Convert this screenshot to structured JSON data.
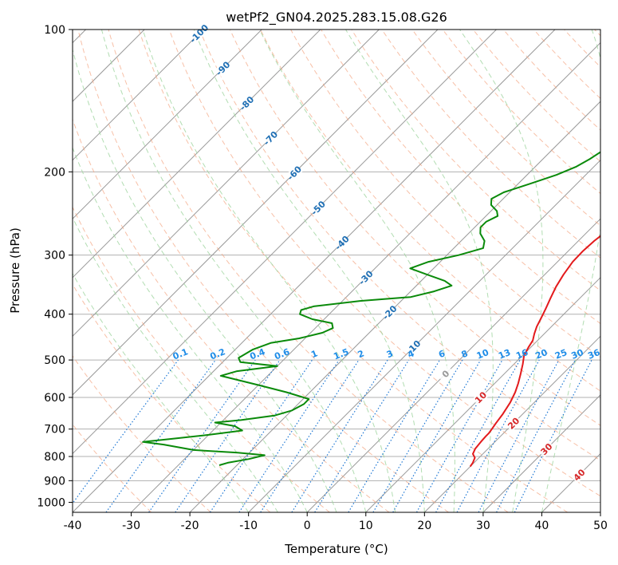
{
  "chart_data": {
    "type": "line",
    "title": "wetPf2_GN04.2025.283.15.08.G26",
    "xlabel": "Temperature (°C)",
    "ylabel": "Pressure (hPa)",
    "xlim": [
      -40,
      50
    ],
    "ylim": [
      1050,
      100
    ],
    "y_scale": "log",
    "grid": true,
    "x_ticks": [
      -40,
      -30,
      -20,
      -10,
      0,
      10,
      20,
      30,
      40,
      50
    ],
    "y_ticks": [
      100,
      200,
      300,
      400,
      500,
      600,
      700,
      800,
      900,
      1000
    ],
    "colors": {
      "temperature": "#e31a1c",
      "dewpoint": "#0a8a0a",
      "isotherm": "#999999",
      "dry_adiabat": "#f4a582",
      "moist_adiabat": "#9fd49f",
      "mixing_ratio": "#1f78d4",
      "label_isotherm": "#1f6fb4",
      "label_mixing": "#1f8de8",
      "label_warm": "#d62728"
    },
    "series": [
      {
        "key": "temperature",
        "points": [
          [
            20.0,
            840
          ],
          [
            19.8,
            825
          ],
          [
            19.3,
            805
          ],
          [
            18.3,
            790
          ],
          [
            17.8,
            770
          ],
          [
            17.6,
            745
          ],
          [
            17.5,
            725
          ],
          [
            17.5,
            715
          ],
          [
            17.3,
            700
          ],
          [
            17.0,
            680
          ],
          [
            16.6,
            650
          ],
          [
            15.9,
            615
          ],
          [
            15.0,
            585
          ],
          [
            14.0,
            560
          ],
          [
            12.8,
            535
          ],
          [
            11.5,
            510
          ],
          [
            10.3,
            490
          ],
          [
            9.6,
            470
          ],
          [
            9.2,
            455
          ],
          [
            8.3,
            440
          ],
          [
            7.5,
            425
          ],
          [
            6.9,
            410
          ],
          [
            6.0,
            390
          ],
          [
            5.0,
            370
          ],
          [
            4.0,
            350
          ],
          [
            3.2,
            330
          ],
          [
            2.6,
            310
          ],
          [
            2.5,
            295
          ],
          [
            2.7,
            280
          ],
          [
            3.2,
            265
          ],
          [
            3.9,
            250
          ],
          [
            4.8,
            237
          ],
          [
            5.5,
            225
          ],
          [
            6.4,
            213
          ],
          [
            7.2,
            202
          ],
          [
            7.7,
            190
          ],
          [
            8.6,
            177
          ],
          [
            9.7,
            165
          ],
          [
            11.2,
            152
          ],
          [
            12.4,
            142
          ],
          [
            12.9,
            134
          ],
          [
            13.4,
            126
          ],
          [
            14.5,
            118
          ],
          [
            16.6,
            110
          ],
          [
            18.4,
            100
          ]
        ]
      },
      {
        "key": "dewpoint",
        "points": [
          [
            -23.0,
            835
          ],
          [
            -22.0,
            825
          ],
          [
            -19.0,
            810
          ],
          [
            -17.0,
            795
          ],
          [
            -22.0,
            785
          ],
          [
            -30.0,
            775
          ],
          [
            -36.0,
            755
          ],
          [
            -40.0,
            745
          ],
          [
            -36.0,
            735
          ],
          [
            -30.0,
            720
          ],
          [
            -25.0,
            705
          ],
          [
            -27.0,
            690
          ],
          [
            -31.0,
            678
          ],
          [
            -27.0,
            670
          ],
          [
            -22.0,
            655
          ],
          [
            -20.0,
            640
          ],
          [
            -19.0,
            620
          ],
          [
            -19.0,
            605
          ],
          [
            -24.0,
            585
          ],
          [
            -30.0,
            565
          ],
          [
            -38.0,
            540
          ],
          [
            -36.0,
            528
          ],
          [
            -30.0,
            515
          ],
          [
            -37.0,
            505
          ],
          [
            -38.0,
            495
          ],
          [
            -37.0,
            475
          ],
          [
            -35.0,
            460
          ],
          [
            -31.0,
            450
          ],
          [
            -28.0,
            438
          ],
          [
            -27.0,
            428
          ],
          [
            -28.0,
            418
          ],
          [
            -32.0,
            410
          ],
          [
            -35.0,
            400
          ],
          [
            -35.5,
            392
          ],
          [
            -34.0,
            385
          ],
          [
            -27.0,
            375
          ],
          [
            -19.0,
            368
          ],
          [
            -16.0,
            358
          ],
          [
            -14.0,
            348
          ],
          [
            -16.0,
            340
          ],
          [
            -20.0,
            330
          ],
          [
            -24.0,
            320
          ],
          [
            -22.0,
            310
          ],
          [
            -18.0,
            300
          ],
          [
            -15.0,
            290
          ],
          [
            -16.0,
            280
          ],
          [
            -18.0,
            270
          ],
          [
            -19.0,
            262
          ],
          [
            -19.0,
            255
          ],
          [
            -18.0,
            248
          ],
          [
            -19.0,
            242
          ],
          [
            -21.0,
            235
          ],
          [
            -22.0,
            228
          ],
          [
            -21.0,
            221
          ],
          [
            -18.0,
            212
          ],
          [
            -15.0,
            203
          ],
          [
            -13.0,
            195
          ],
          [
            -12.0,
            188
          ],
          [
            -11.0,
            178
          ],
          [
            -10.0,
            168
          ],
          [
            -9.0,
            156
          ],
          [
            -7.0,
            142
          ],
          [
            -4.0,
            128
          ],
          [
            -2.0,
            118
          ],
          [
            1.0,
            108
          ],
          [
            4.0,
            100
          ]
        ]
      }
    ],
    "isotherm_labels": [
      "-100",
      "-90",
      "-80",
      "-70",
      "-60",
      "-50",
      "-40",
      "-30",
      "-20",
      "-10",
      "0",
      "10",
      "20",
      "30",
      "40"
    ],
    "mixing_ratio_labels": [
      "0.1",
      "0.2",
      "0.4",
      "0.6",
      "1",
      "1.5",
      "2",
      "3",
      "4",
      "6",
      "8",
      "10",
      "13",
      "16",
      "20",
      "25",
      "30",
      "36"
    ]
  }
}
